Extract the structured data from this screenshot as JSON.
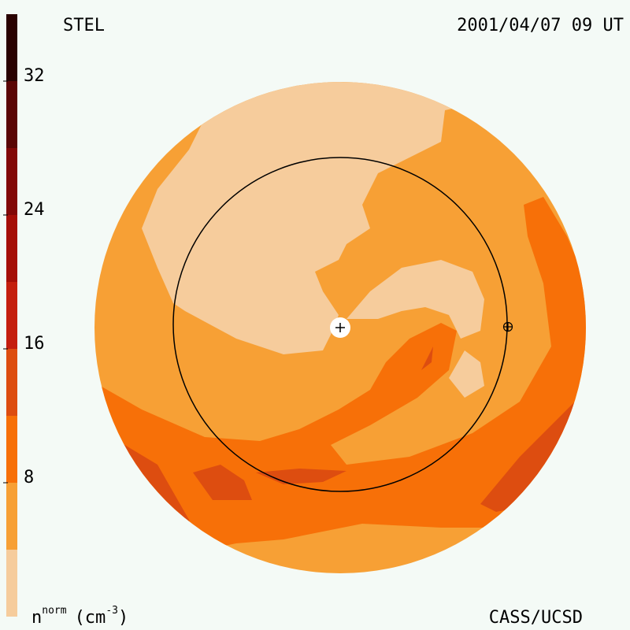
{
  "chart_data": {
    "type": "contour",
    "title": "STEL",
    "timestamp": "2001/04/07 09 UT",
    "credit": "CASS/UCSD",
    "colorbar_label": {
      "base": "n",
      "sup": "norm",
      "unit": "(cm",
      "unit_sup": "-3",
      "close": ")"
    },
    "levels": [
      0,
      4,
      8,
      12,
      16,
      20,
      24,
      28,
      32,
      36
    ],
    "colors": [
      "#f6cc9c",
      "#f7a035",
      "#f77008",
      "#dd4d10",
      "#c41e0e",
      "#a50e08",
      "#820808",
      "#5a0505",
      "#2a0202"
    ],
    "clim": [
      0,
      36
    ],
    "cticks": [
      8,
      16,
      24,
      32
    ]
  }
}
